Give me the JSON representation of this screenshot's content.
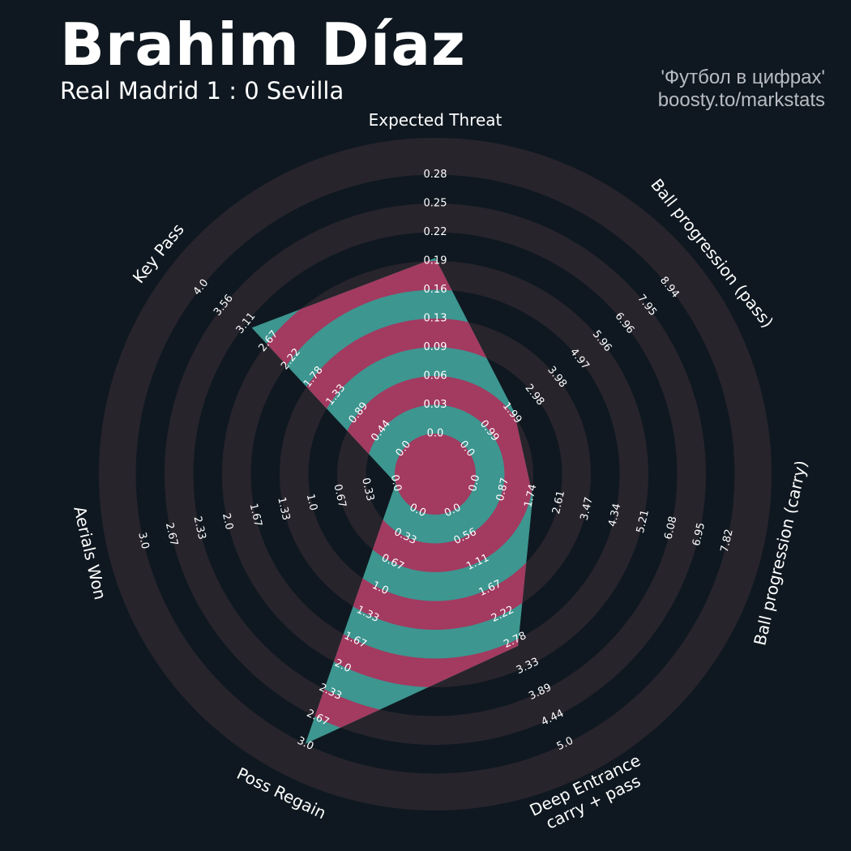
{
  "header": {
    "title": "Brahim Díaz",
    "subtitle": "Real Madrid 1 : 0 Sevilla",
    "credit_line1": "'Футбол в цифрах'",
    "credit_line2": "boosty.to/markstats"
  },
  "colors": {
    "background": "#0f1820",
    "ring_band": "#28242c",
    "fill_teal": "#3d9690",
    "fill_pink": "#a33a60"
  },
  "chart_data": {
    "type": "radar",
    "grid": true,
    "rings": 10,
    "categories": [
      "Expected Threat",
      "Ball progression (pass)",
      "Ball progression (carry)",
      "Deep Entrance\ncarry + pass",
      "Poss Regain",
      "Aerials Won",
      "Key Pass"
    ],
    "ticks": [
      [
        "0.0",
        "0.03",
        "0.06",
        "0.09",
        "0.13",
        "0.16",
        "0.19",
        "0.22",
        "0.25",
        "0.28"
      ],
      [
        "0.0",
        "0.99",
        "1.99",
        "2.98",
        "3.98",
        "4.97",
        "5.96",
        "6.96",
        "7.95",
        "8.94"
      ],
      [
        "0.0",
        "0.87",
        "1.74",
        "2.61",
        "3.47",
        "4.34",
        "5.21",
        "6.08",
        "6.95",
        "7.82"
      ],
      [
        "0.0",
        "0.56",
        "1.11",
        "1.67",
        "2.22",
        "2.78",
        "3.33",
        "3.89",
        "4.44",
        "5.0"
      ],
      [
        "0.0",
        "0.33",
        "0.67",
        "1.0",
        "1.33",
        "1.67",
        "2.0",
        "2.33",
        "2.67",
        "3.0"
      ],
      [
        "0.0",
        "0.33",
        "0.67",
        "1.0",
        "1.33",
        "1.67",
        "2.0",
        "2.33",
        "2.67",
        "3.0"
      ],
      [
        "0.0",
        "0.44",
        "0.89",
        "1.33",
        "1.78",
        "2.22",
        "2.67",
        "3.11",
        "3.56",
        "4.0"
      ]
    ],
    "ranges": [
      [
        0,
        0.28
      ],
      [
        0,
        8.94
      ],
      [
        0,
        7.82
      ],
      [
        0,
        5.0
      ],
      [
        0,
        3.0
      ],
      [
        0,
        3.0
      ],
      [
        0,
        4.0
      ]
    ],
    "values": [
      0.19,
      2.08,
      1.8,
      2.9,
      3.0,
      0.0,
      3.0
    ]
  }
}
